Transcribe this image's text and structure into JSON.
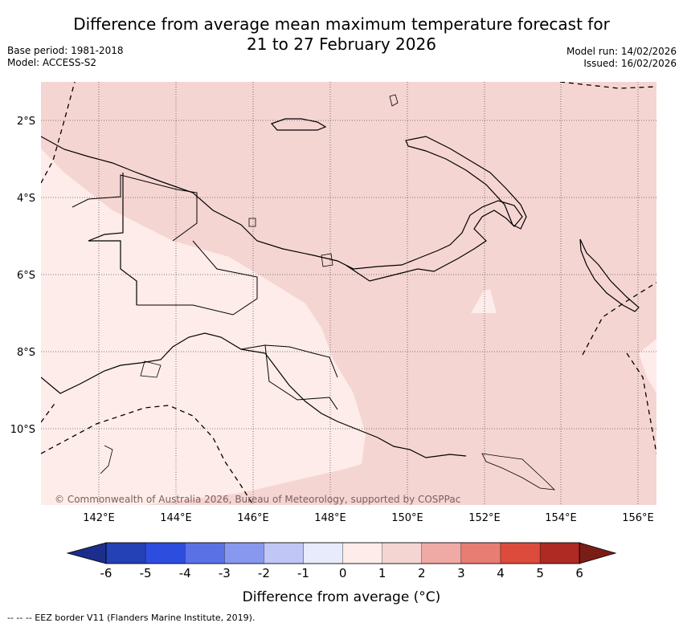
{
  "title": {
    "line1": "Difference from average mean maximum temperature forecast for",
    "line2": "21 to 27 February 2026"
  },
  "meta": {
    "base_period": "Base period: 1981-2018",
    "model": "Model: ACCESS-S2",
    "model_run": "Model run: 14/02/2026",
    "issued": "Issued: 16/02/2026"
  },
  "map": {
    "lat_labels": [
      "2°S",
      "4°S",
      "6°S",
      "8°S",
      "10°S"
    ],
    "lon_labels": [
      "142°E",
      "144°E",
      "146°E",
      "148°E",
      "150°E",
      "152°E",
      "154°E",
      "156°E"
    ],
    "copyright": "© Commonwealth of Australia 2026, Bureau of Meteorology, supported by COSPPac",
    "land_line_color": "#000000",
    "region_colors": {
      "above_1": "#f5d5d2",
      "above_0": "#fdece9"
    }
  },
  "colorbar": {
    "ticks": [
      "-6",
      "-5",
      "-4",
      "-3",
      "-2",
      "-1",
      "0",
      "1",
      "2",
      "3",
      "4",
      "5",
      "6"
    ],
    "colors": [
      "#1c2e8c",
      "#2441b5",
      "#2d4ddf",
      "#5a71e6",
      "#8898ee",
      "#c0c7f6",
      "#e8ebfb",
      "#fdece9",
      "#f5d5d2",
      "#f0aaa5",
      "#e77d73",
      "#dc4b3c",
      "#ae2a22",
      "#7a1d17"
    ],
    "title": "Difference from average (°C)"
  },
  "footer": "--  --  -- EEZ border V11 (Flanders Marine Institute, 2019)."
}
